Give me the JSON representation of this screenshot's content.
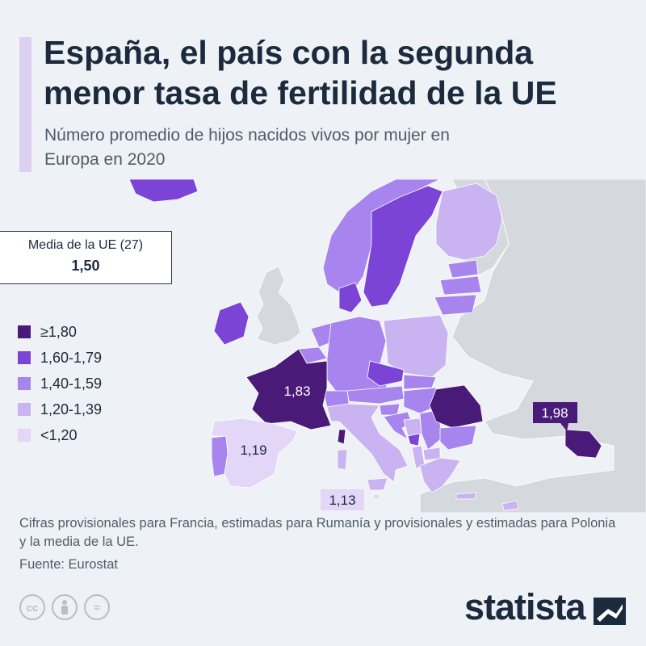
{
  "title": "España, el país con la segunda menor tasa de fertilidad de la UE",
  "subtitle": "Número promedio de hijos nacidos vivos por mujer en Europa en 2020",
  "eu_average": {
    "label": "Media de la UE (27)",
    "value": "1,50"
  },
  "legend": [
    {
      "label": "≥1,80",
      "color": "#4a1a78"
    },
    {
      "label": "1,60-1,79",
      "color": "#7c44d6"
    },
    {
      "label": "1,40-1,59",
      "color": "#a884ef"
    },
    {
      "label": "1,20-1,39",
      "color": "#c9b3f0"
    },
    {
      "label": "<1,20",
      "color": "#e3d6f7"
    }
  ],
  "colors": {
    "background": "#eef1f5",
    "sea": "#eef1f5",
    "non_eu_land": "#d5d8dc",
    "title": "#1b2a3c",
    "accent": "#ddd0f2"
  },
  "map_labels": {
    "france": "1,83",
    "spain": "1,19",
    "malta": "1,13",
    "georgia": "1,98"
  },
  "map_regions": {
    "iceland": "1,60-1,79",
    "norway": "1,40-1,59",
    "sweden": "1,60-1,79",
    "finland": "1,20-1,39",
    "estonia": "1,40-1,59",
    "latvia": "1,40-1,59",
    "lithuania": "1,40-1,59",
    "denmark": "1,60-1,79",
    "ireland": "1,60-1,79",
    "netherlands": "1,40-1,59",
    "belgium": "1,40-1,59",
    "germany": "1,40-1,59",
    "poland": "1,20-1,39",
    "czechia": "1,60-1,79",
    "slovakia": "1,40-1,59",
    "austria": "1,40-1,59",
    "switzerland": "1,40-1,59",
    "hungary": "1,40-1,59",
    "slovenia": "1,40-1,59",
    "croatia": "1,40-1,59",
    "serbia": "1,40-1,59",
    "bosnia": "1,20-1,39",
    "montenegro": "1,60-1,79",
    "albania": "1,20-1,39",
    "north_macedonia": "1,20-1,39",
    "bulgaria": "1,40-1,59",
    "romania": "≥1,80",
    "greece": "1,20-1,39",
    "italy": "1,20-1,39",
    "portugal": "1,40-1,59",
    "spain": "<1,20",
    "france": "≥1,80",
    "georgia": "≥1,80",
    "malta": "<1,20",
    "cyprus": "1,20-1,39"
  },
  "footnote": "Cifras provisionales para Francia, estimadas para Rumanía y provisionales y estimadas para Polonia y la media de la UE.",
  "source": "Fuente: Eurostat",
  "license_icons": [
    "cc-icon",
    "attribution-icon",
    "no-derivatives-icon"
  ],
  "license_glyphs": {
    "cc": "cc",
    "nd": "="
  },
  "brand": "statista"
}
